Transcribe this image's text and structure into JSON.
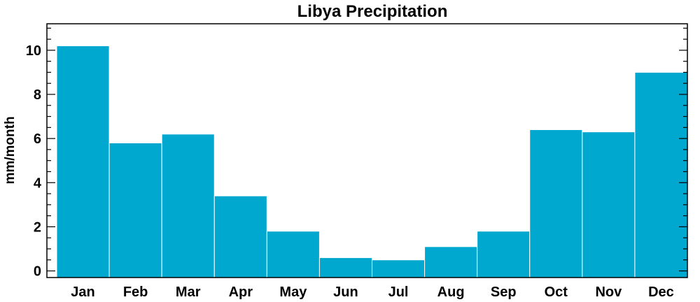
{
  "chart_data": {
    "type": "bar",
    "title": "Libya Precipitation",
    "xlabel": "",
    "ylabel": "mm/month",
    "categories": [
      "Jan",
      "Feb",
      "Mar",
      "Apr",
      "May",
      "Jun",
      "Jul",
      "Aug",
      "Sep",
      "Oct",
      "Nov",
      "Dec"
    ],
    "values": [
      10.2,
      5.8,
      6.2,
      3.4,
      1.8,
      0.6,
      0.5,
      1.1,
      1.8,
      6.4,
      6.3,
      9.0
    ],
    "ylim": [
      -0.3,
      11.2
    ],
    "yticks": [
      0,
      2,
      4,
      6,
      8,
      10
    ],
    "ytick_labels": [
      "0",
      "2",
      "4",
      "6",
      "8",
      "10"
    ],
    "bar_color": "#00a8d0",
    "grid": false,
    "legend": "none"
  }
}
